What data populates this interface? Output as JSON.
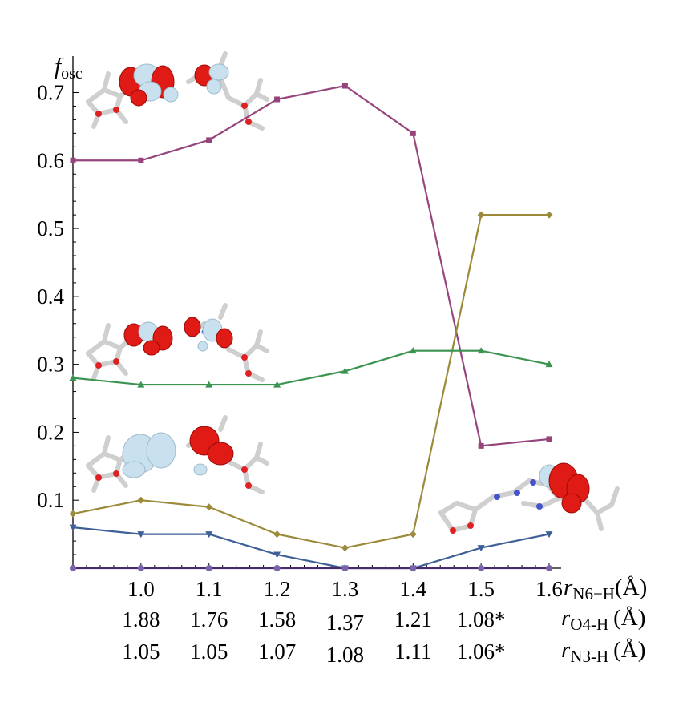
{
  "chart_data": {
    "type": "line",
    "ylabel": "f",
    "ylabel_sub": "osc",
    "ylim": [
      0,
      0.72
    ],
    "xlim": [
      0.9,
      1.6
    ],
    "yticks": [
      0.1,
      0.2,
      0.3,
      0.4,
      0.5,
      0.6,
      0.7
    ],
    "ytick_labels": [
      "0.1",
      "0.2",
      "0.3",
      "0.4",
      "0.5",
      "0.6",
      "0.7"
    ],
    "x": [
      0.9,
      1.0,
      1.1,
      1.2,
      1.3,
      1.4,
      1.5,
      1.6
    ],
    "xtick_rows": [
      {
        "labels": [
          "1.0",
          "1.1",
          "1.2",
          "1.3",
          "1.4",
          "1.5",
          "1.6"
        ],
        "var": "r",
        "sub": "N6−H",
        "unit": "(Å)"
      },
      {
        "labels": [
          "1.88",
          "1.76",
          "1.58",
          "1.37",
          "1.21",
          "1.08*"
        ],
        "var": "r",
        "sub": "O4-H",
        "unit": "(Å)"
      },
      {
        "labels": [
          "1.05",
          "1.05",
          "1.07",
          "1.08",
          "1.11",
          "1.06*"
        ],
        "var": "r",
        "sub": "N3-H",
        "unit": "(Å)"
      }
    ],
    "series": [
      {
        "name": "state-purple",
        "color": "#96447c",
        "marker": "square",
        "values": [
          0.6,
          0.6,
          0.63,
          0.69,
          0.71,
          0.64,
          0.18,
          0.19
        ]
      },
      {
        "name": "state-olive",
        "color": "#9a8a3a",
        "marker": "diamond",
        "values": [
          0.08,
          0.1,
          0.09,
          0.05,
          0.03,
          0.05,
          0.52,
          0.52
        ]
      },
      {
        "name": "state-green",
        "color": "#3a9450",
        "marker": "triangle-up",
        "values": [
          0.28,
          0.27,
          0.27,
          0.27,
          0.29,
          0.32,
          0.32,
          0.3
        ]
      },
      {
        "name": "state-blue",
        "color": "#3d5f96",
        "marker": "triangle-down",
        "values": [
          0.06,
          0.05,
          0.05,
          0.02,
          0.0,
          0.0,
          0.03,
          0.05
        ]
      },
      {
        "name": "state-baseline",
        "color": "#4b2a6b",
        "marker": "circle",
        "values": [
          0.0,
          0.0,
          0.0,
          0.0,
          0.0,
          0.0,
          0.0,
          0.0
        ]
      }
    ]
  },
  "insets": [
    {
      "name": "orbital-inset-top"
    },
    {
      "name": "orbital-inset-middle"
    },
    {
      "name": "orbital-inset-lower"
    },
    {
      "name": "orbital-inset-right"
    }
  ]
}
